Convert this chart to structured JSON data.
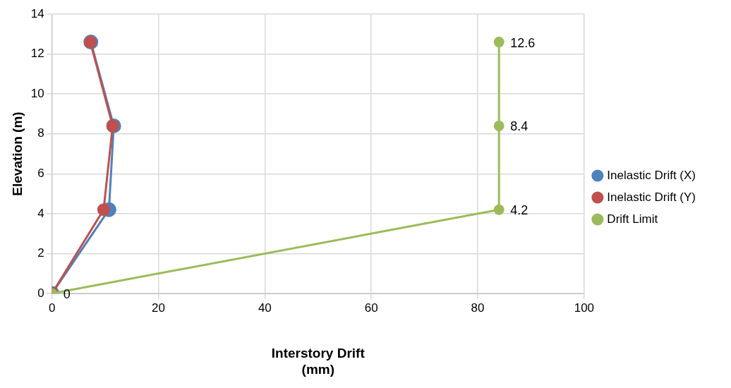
{
  "chart_data": {
    "type": "line",
    "xlabel": "Interstory Drift (mm)",
    "ylabel": "Elevation (m)",
    "xlim": [
      0,
      100
    ],
    "xticks": [
      0,
      20,
      40,
      60,
      80,
      100
    ],
    "ylim": [
      0,
      14
    ],
    "yticks": [
      0,
      2,
      4,
      6,
      8,
      10,
      12,
      14
    ],
    "grid": true,
    "legend": "right",
    "marker": "circle",
    "line_style": "solid",
    "series": [
      {
        "name": "Inelastic Drift (X)",
        "color": "#4f81bd",
        "x": [
          0,
          10.7,
          11.6,
          7.3
        ],
        "values": [
          0,
          4.2,
          8.4,
          12.6
        ]
      },
      {
        "name": "Inelastic Drift (Y)",
        "color": "#c0504d",
        "x": [
          0,
          9.7,
          11.4,
          7.2
        ],
        "values": [
          0,
          4.2,
          8.4,
          12.6
        ]
      },
      {
        "name": "Drift Limit",
        "color": "#9bbb59",
        "x": [
          0,
          84,
          84,
          84
        ],
        "values": [
          0,
          4.2,
          8.4,
          12.6
        ],
        "value_labels": [
          "0",
          "4.2",
          "8.4",
          "12.6"
        ]
      }
    ]
  }
}
